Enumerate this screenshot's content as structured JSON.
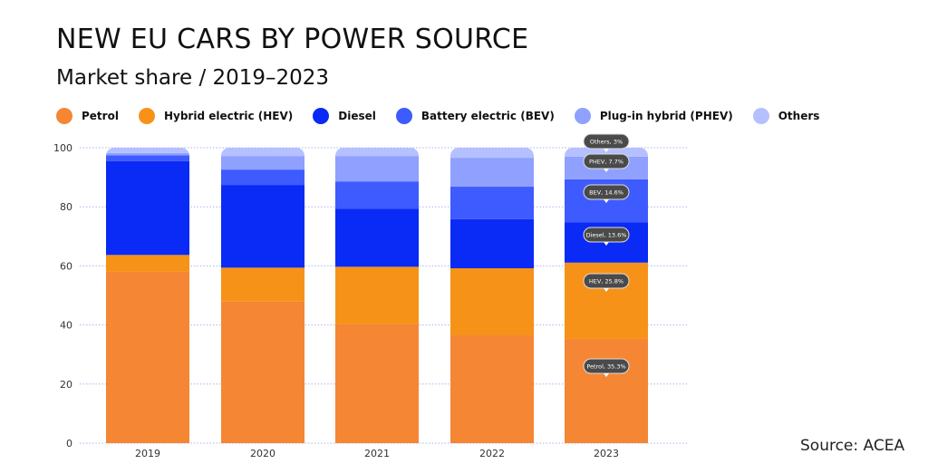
{
  "chart_data": {
    "type": "bar",
    "stacked": true,
    "title": "NEW EU CARS BY POWER SOURCE",
    "subtitle": "Market share / 2019–2023",
    "source": "Source: ACEA",
    "xlabel": "",
    "ylabel": "",
    "ylim": [
      0,
      100
    ],
    "yticks": [
      0,
      20,
      40,
      60,
      80,
      100
    ],
    "grid": true,
    "legend_position": "top",
    "categories": [
      "2019",
      "2020",
      "2021",
      "2022",
      "2023"
    ],
    "series": [
      {
        "name": "Petrol",
        "color": "#F58634",
        "values": [
          58.0,
          47.9,
          40.2,
          36.5,
          35.3
        ]
      },
      {
        "name": "Hybrid electric (HEV)",
        "color": "#F79219",
        "values": [
          5.7,
          11.5,
          19.5,
          22.7,
          25.8
        ]
      },
      {
        "name": "Diesel",
        "color": "#0A2AF5",
        "values": [
          31.8,
          28.0,
          19.7,
          16.6,
          13.6
        ]
      },
      {
        "name": "Battery electric (BEV)",
        "color": "#3E5BFF",
        "values": [
          1.9,
          5.2,
          9.2,
          11.0,
          14.6
        ]
      },
      {
        "name": "Plug-in hybrid (PHEV)",
        "color": "#8FA0FF",
        "values": [
          0.8,
          4.6,
          8.6,
          9.8,
          7.7
        ]
      },
      {
        "name": "Others",
        "color": "#B5C0FF",
        "values": [
          1.8,
          2.8,
          2.8,
          3.4,
          3.0
        ]
      }
    ],
    "annotations": [
      "Petrol, 35.3%",
      "HEV, 25.8%",
      "Diesel, 13.6%",
      "BEV, 14.6%",
      "PHEV, 7.7%",
      "Others, 3%"
    ]
  }
}
